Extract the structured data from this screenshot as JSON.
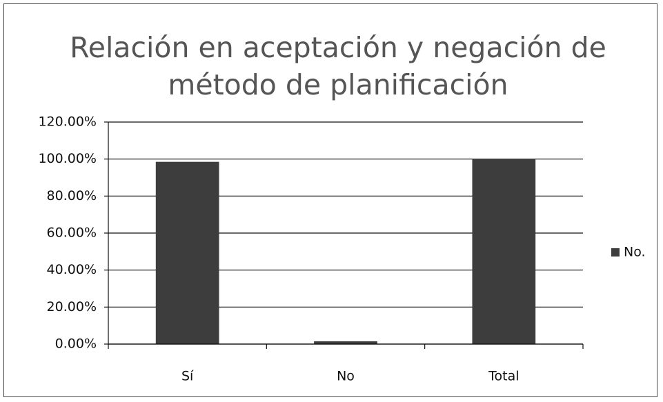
{
  "chart_data": {
    "type": "bar",
    "title": "Relación en aceptación y negación de método de planificación",
    "categories": [
      "Sí",
      "No",
      "Total"
    ],
    "series": [
      {
        "name": "No.",
        "color": "#3d3d3d",
        "values": [
          98.5,
          1.5,
          100
        ]
      }
    ],
    "ylim": [
      0,
      120
    ],
    "yticks": [
      {
        "value": 0,
        "label": "0.00%"
      },
      {
        "value": 20,
        "label": "20.00%"
      },
      {
        "value": 40,
        "label": "40.00%"
      },
      {
        "value": 60,
        "label": "60.00%"
      },
      {
        "value": 80,
        "label": "80.00%"
      },
      {
        "value": 100,
        "label": "100.00%"
      },
      {
        "value": 120,
        "label": "120.00%"
      }
    ],
    "grid": true,
    "legend": "right"
  }
}
